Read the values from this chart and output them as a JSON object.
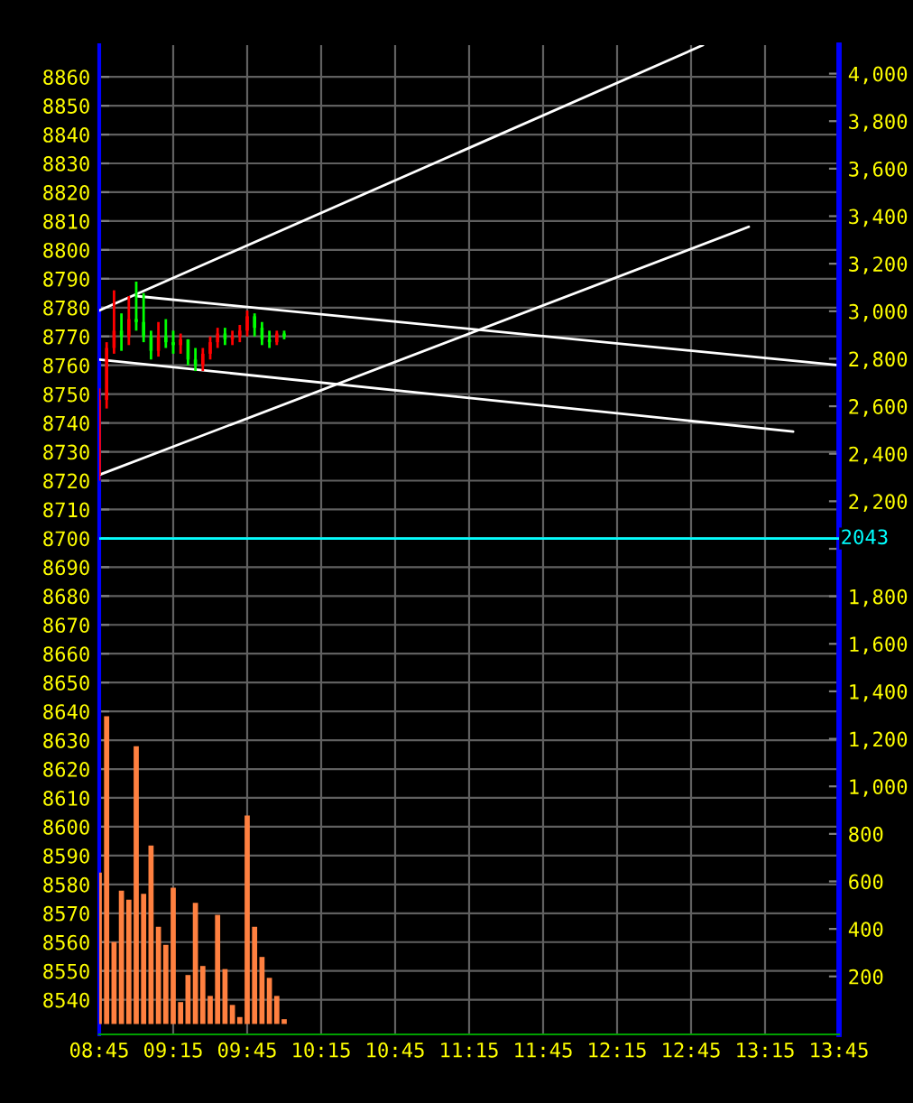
{
  "chart_data": {
    "type": "candlestick",
    "x": [
      8.75,
      8.8,
      8.85,
      8.9,
      8.95,
      9.0,
      9.05,
      9.1,
      9.15,
      9.2,
      9.25,
      9.3,
      9.35,
      9.4,
      9.45,
      9.5,
      9.55,
      9.6,
      9.65,
      9.7,
      9.75,
      9.8,
      9.85,
      9.9,
      9.95,
      10.0
    ],
    "ohlc": [
      [
        8722,
        8752,
        8720,
        8748
      ],
      [
        8748,
        8768,
        8745,
        8766
      ],
      [
        8766,
        8786,
        8764,
        8772
      ],
      [
        8772,
        8778,
        8765,
        8770
      ],
      [
        8770,
        8784,
        8767,
        8776
      ],
      [
        8776,
        8789,
        8772,
        8775
      ],
      [
        8775,
        8785,
        8768,
        8770
      ],
      [
        8770,
        8772,
        8762,
        8765
      ],
      [
        8765,
        8775,
        8763,
        8770
      ],
      [
        8770,
        8776,
        8766,
        8768
      ],
      [
        8768,
        8772,
        8764,
        8767
      ],
      [
        8767,
        8771,
        8764,
        8769
      ],
      [
        8769,
        8769,
        8760,
        8762
      ],
      [
        8762,
        8766,
        8758,
        8760
      ],
      [
        8760,
        8766,
        8758,
        8764
      ],
      [
        8764,
        8770,
        8762,
        8768
      ],
      [
        8768,
        8773,
        8766,
        8771
      ],
      [
        8771,
        8773,
        8767,
        8769
      ],
      [
        8769,
        8772,
        8767,
        8770
      ],
      [
        8770,
        8774,
        8768,
        8772
      ],
      [
        8772,
        8779,
        8770,
        8777
      ],
      [
        8777,
        8778,
        8770,
        8773
      ],
      [
        8773,
        8775,
        8767,
        8769
      ],
      [
        8769,
        8772,
        8766,
        8768
      ],
      [
        8768,
        8772,
        8767,
        8771
      ],
      [
        8771,
        8772,
        8769,
        8770
      ]
    ],
    "colors": [
      "#ff0000",
      "#ff0000",
      "#ff0000",
      "#00ff00",
      "#ff0000",
      "#00ff00",
      "#00ff00",
      "#00ff00",
      "#ff0000",
      "#00ff00",
      "#00ff00",
      "#ff0000",
      "#00ff00",
      "#00ff00",
      "#ff0000",
      "#ff0000",
      "#ff0000",
      "#00ff00",
      "#ff0000",
      "#ff0000",
      "#ff0000",
      "#00ff00",
      "#00ff00",
      "#00ff00",
      "#ff0000",
      "#00ff00"
    ],
    "series": [
      {
        "type": "bar",
        "axis": "y2",
        "color": "#ff8040",
        "x": [
          8.75,
          8.8,
          8.85,
          8.9,
          8.95,
          9.0,
          9.05,
          9.1,
          9.15,
          9.2,
          9.25,
          9.3,
          9.35,
          9.4,
          9.45,
          9.5,
          9.55,
          9.6,
          9.65,
          9.7,
          9.75,
          9.8,
          9.85,
          9.9,
          9.95,
          10.0
        ],
        "values": [
          637,
          1295,
          345,
          561,
          523,
          1169,
          548,
          751,
          409,
          333,
          573,
          92,
          206,
          510,
          244,
          118,
          459,
          231,
          80,
          29,
          877,
          409,
          282,
          194,
          118,
          20
        ]
      },
      {
        "type": "line",
        "color": "#ffffff",
        "x": [
          8.75,
          12.83
        ],
        "values": [
          8779,
          8871
        ]
      },
      {
        "type": "line",
        "color": "#ffffff",
        "x": [
          9.0,
          13.75
        ],
        "values": [
          8784,
          8760
        ]
      },
      {
        "type": "line",
        "color": "#ffffff",
        "x": [
          8.75,
          13.44
        ],
        "values": [
          8762,
          8737
        ]
      },
      {
        "type": "line",
        "color": "#ffffff",
        "x": [
          8.75,
          13.14
        ],
        "values": [
          8722,
          8808
        ]
      }
    ],
    "ref_lines": [
      {
        "axis": "y2",
        "value": 2043,
        "label": "2043",
        "color": "#00ffff"
      }
    ],
    "xlim": [
      8.75,
      13.75
    ],
    "xticks": [
      {
        "value": 8.75,
        "label": "08:45"
      },
      {
        "value": 9.25,
        "label": "09:15"
      },
      {
        "value": 9.75,
        "label": "09:45"
      },
      {
        "value": 10.25,
        "label": "10:15"
      },
      {
        "value": 10.75,
        "label": "10:45"
      },
      {
        "value": 11.25,
        "label": "11:15"
      },
      {
        "value": 11.75,
        "label": "11:45"
      },
      {
        "value": 12.25,
        "label": "12:15"
      },
      {
        "value": 12.75,
        "label": "12:45"
      },
      {
        "value": 13.25,
        "label": "13:15"
      },
      {
        "value": 13.75,
        "label": "13:45"
      }
    ],
    "ylim": [
      8528,
      8871
    ],
    "yticks": [
      8540,
      8550,
      8560,
      8570,
      8580,
      8590,
      8600,
      8610,
      8620,
      8630,
      8640,
      8650,
      8660,
      8670,
      8680,
      8690,
      8700,
      8710,
      8720,
      8730,
      8740,
      8750,
      8760,
      8770,
      8780,
      8790,
      8800,
      8810,
      8820,
      8830,
      8840,
      8850,
      8860
    ],
    "y2lim": [
      -44,
      4120
    ],
    "y2ticks": [
      200,
      400,
      600,
      800,
      {
        "value": 1000,
        "label": "1,000"
      },
      {
        "value": 1200,
        "label": "1,200"
      },
      {
        "value": 1400,
        "label": "1,400"
      },
      {
        "value": 1600,
        "label": "1,600"
      },
      {
        "value": 1800,
        "label": "1,800"
      },
      {
        "value": 2000,
        "label": null
      },
      {
        "value": 2200,
        "label": "2,200"
      },
      {
        "value": 2400,
        "label": "2,400"
      },
      {
        "value": 2600,
        "label": "2,600"
      },
      {
        "value": 2800,
        "label": "2,800"
      },
      {
        "value": 3000,
        "label": "3,000"
      },
      {
        "value": 3200,
        "label": "3,200"
      },
      {
        "value": 3400,
        "label": "3,400"
      },
      {
        "value": 3600,
        "label": "3,600"
      },
      {
        "value": 3800,
        "label": "3,800"
      },
      {
        "value": 4000,
        "label": "4,000"
      }
    ],
    "grid": true
  }
}
